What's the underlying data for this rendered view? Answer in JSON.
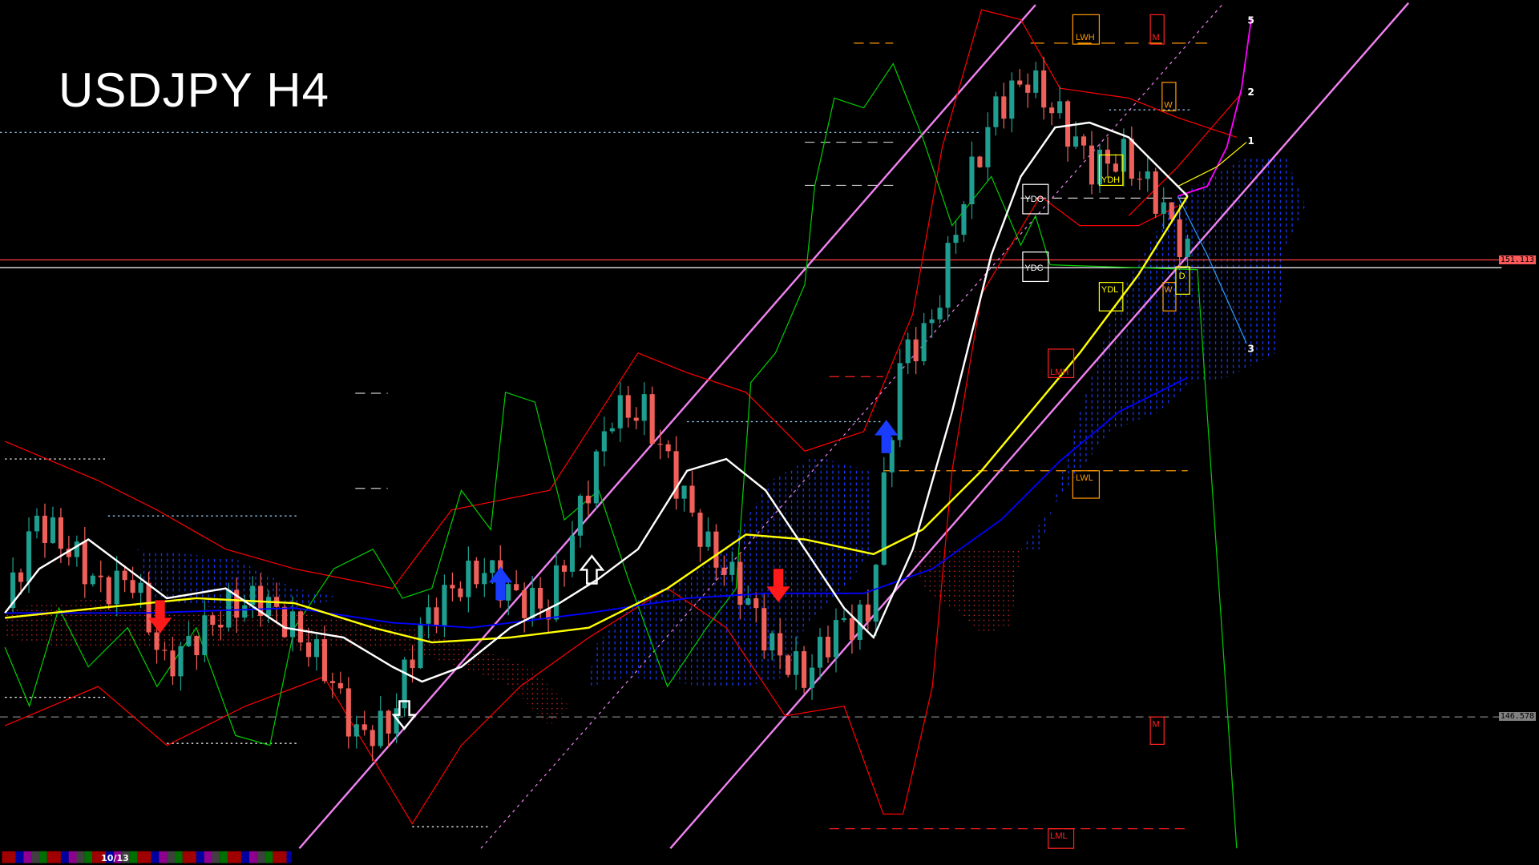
{
  "title": "USDJPY H4",
  "chart_data": {
    "type": "candlestick",
    "symbol": "USDJPY",
    "timeframe": "H4",
    "closes": [
      147.659,
      148.535,
      148.243,
      147.853,
      147.951,
      147.075,
      147.367,
      147.659,
      147.756,
      147.464,
      147.075,
      146.394,
      146.491,
      147.464,
      147.853,
      148.048,
      147.756,
      147.659,
      148.632,
      149.605,
      149.605,
      148.924,
      148.243,
      147.853,
      147.27,
      146.978,
      147.464,
      147.562,
      150.091,
      150.481,
      151.745,
      152.621,
      152.913,
      152.524,
      152.037,
      152.134,
      151.745,
      151.162
    ],
    "price_levels": [
      {
        "label": "151.113",
        "price": 151.113,
        "color": "#ff5a5a"
      },
      {
        "label": "146.578",
        "price": 146.578,
        "color": "#808080"
      }
    ],
    "level_labels": {
      "lwh": "LWH",
      "m_top": "M",
      "w_top": "W",
      "ydh": "YDH",
      "ydo": "YDO",
      "ydc": "YDC",
      "ydl": "YDL",
      "w_mid": "W",
      "d": "D",
      "lmh": "LMH",
      "lwl": "LWL",
      "m_bottom": "M",
      "lml": "LML"
    },
    "wave_labels": {
      "w5": "5",
      "w2": "2",
      "w1": "1",
      "w3": "3"
    },
    "colors": {
      "bull": "#1f9e8f",
      "bear": "#f0605a",
      "channel": "#ee82ee",
      "ma_fast": "#ffffff",
      "ma_mid": "#ffff00",
      "ma_slow": "#0000ff",
      "chikou": "#00cc00",
      "envelope": "#ff0000"
    },
    "signals": [
      "sell-arrow",
      "buy-arrow",
      "sell-arrow",
      "buy-arrow",
      "buy-arrow-outline",
      "sell-arrow-outline"
    ]
  },
  "status_bar": {
    "counter": "10/13"
  }
}
